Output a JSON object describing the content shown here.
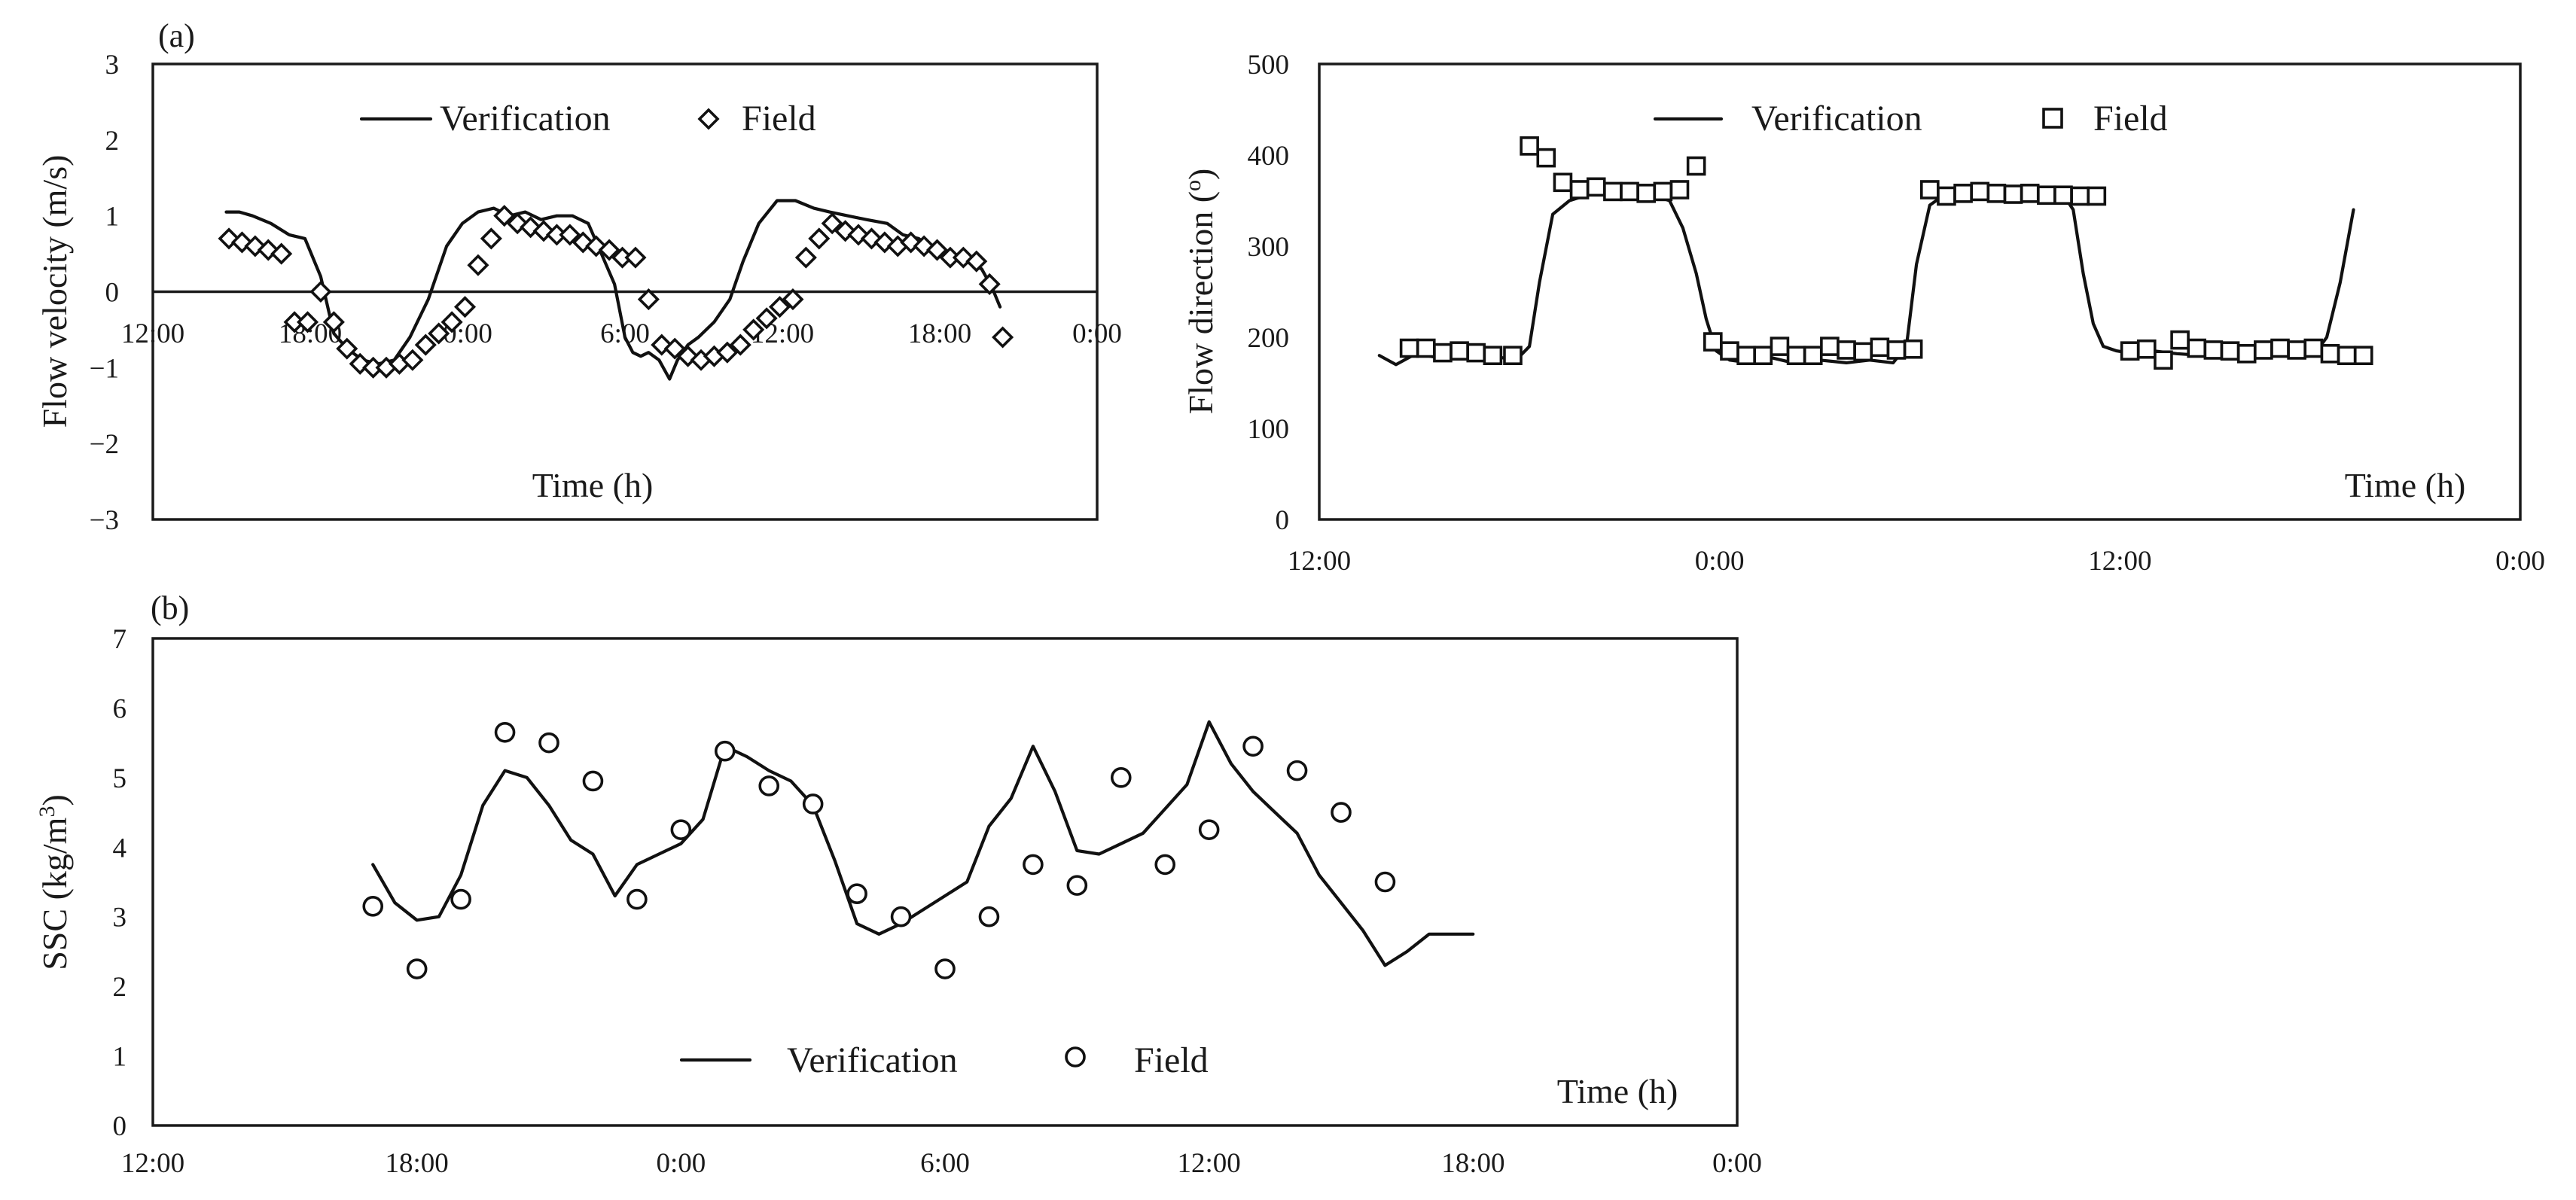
{
  "chart_data": [
    {
      "id": "velocity",
      "type": "line",
      "panel_label": "(a)",
      "ylabel": "Flow velocity (m/s)",
      "xlabel": "Time (h)",
      "ylim": [
        -3,
        3
      ],
      "yticks": [
        3,
        2,
        1,
        0,
        -1,
        -2,
        -3
      ],
      "xlim": [
        0,
        36
      ],
      "xtick_values": [
        0,
        6,
        12,
        18,
        24,
        30,
        36
      ],
      "xtick_labels": [
        "12:00",
        "18:00",
        "0:00",
        "6:00",
        "12:00",
        "18:00",
        "0:00"
      ],
      "legend": [
        "Verification",
        "Field"
      ],
      "series": [
        {
          "name": "Verification",
          "kind": "line",
          "x": [
            2.8,
            3.3,
            3.8,
            4.5,
            5.2,
            5.8,
            6.4,
            6.9,
            7.4,
            8.0,
            8.6,
            9.2,
            9.8,
            10.5,
            11.2,
            11.8,
            12.4,
            13.0,
            13.6,
            14.2,
            14.8,
            15.4,
            16.0,
            16.6,
            17.1,
            17.6,
            18.0,
            18.3,
            18.6,
            18.9,
            19.3,
            19.7,
            20.0,
            20.4,
            20.8,
            21.4,
            22.0,
            22.5,
            23.1,
            23.8,
            24.5,
            25.2,
            25.8,
            26.5,
            27.2,
            28.0,
            28.6,
            29.2,
            29.8,
            30.4,
            31.0,
            31.6,
            32.0,
            32.3
          ],
          "y": [
            1.05,
            1.05,
            1.0,
            0.9,
            0.75,
            0.7,
            0.2,
            -0.55,
            -0.75,
            -0.9,
            -0.95,
            -0.9,
            -0.6,
            -0.1,
            0.6,
            0.9,
            1.05,
            1.1,
            1.0,
            1.05,
            0.95,
            1.0,
            1.0,
            0.9,
            0.5,
            0.1,
            -0.6,
            -0.8,
            -0.85,
            -0.8,
            -0.9,
            -1.15,
            -0.9,
            -0.7,
            -0.6,
            -0.4,
            -0.1,
            0.4,
            0.9,
            1.2,
            1.2,
            1.1,
            1.05,
            1.0,
            0.95,
            0.9,
            0.75,
            0.7,
            0.55,
            0.45,
            0.4,
            0.3,
            0.05,
            -0.2
          ]
        },
        {
          "name": "Field",
          "kind": "diamond",
          "x": [
            2.9,
            3.4,
            3.9,
            4.4,
            4.9,
            5.4,
            5.9,
            6.4,
            6.9,
            7.4,
            7.9,
            8.4,
            8.9,
            9.4,
            9.9,
            10.4,
            10.9,
            11.4,
            11.9,
            12.4,
            12.9,
            13.4,
            13.9,
            14.4,
            14.9,
            15.4,
            15.9,
            16.4,
            16.9,
            17.4,
            17.9,
            18.4,
            18.9,
            19.4,
            19.9,
            20.4,
            20.9,
            21.4,
            21.9,
            22.4,
            22.9,
            23.4,
            23.9,
            24.4,
            24.9,
            25.4,
            25.9,
            26.4,
            26.9,
            27.4,
            27.9,
            28.4,
            28.9,
            29.4,
            29.9,
            30.4,
            30.9,
            31.4,
            31.9,
            32.4
          ],
          "y": [
            0.7,
            0.65,
            0.6,
            0.55,
            0.5,
            -0.4,
            -0.4,
            0.0,
            -0.4,
            -0.75,
            -0.95,
            -1.0,
            -1.0,
            -0.95,
            -0.9,
            -0.7,
            -0.55,
            -0.4,
            -0.2,
            0.35,
            0.7,
            1.0,
            0.9,
            0.85,
            0.8,
            0.75,
            0.75,
            0.65,
            0.6,
            0.55,
            0.45,
            0.45,
            -0.1,
            -0.7,
            -0.75,
            -0.85,
            -0.9,
            -0.85,
            -0.8,
            -0.7,
            -0.5,
            -0.35,
            -0.2,
            -0.1,
            0.45,
            0.7,
            0.9,
            0.8,
            0.75,
            0.7,
            0.65,
            0.6,
            0.65,
            0.6,
            0.55,
            0.45,
            0.45,
            0.4,
            0.1,
            -0.6
          ]
        }
      ]
    },
    {
      "id": "direction",
      "type": "line",
      "panel_label": "",
      "ylabel": "Flow direction (o)",
      "xlabel": "Time (h)",
      "ylim": [
        0,
        500
      ],
      "yticks": [
        500,
        400,
        300,
        200,
        100,
        0
      ],
      "xlim": [
        0,
        36
      ],
      "xtick_values": [
        0,
        12,
        24,
        36
      ],
      "xtick_labels": [
        "12:00",
        "0:00",
        "12:00",
        "0:00"
      ],
      "legend": [
        "Verification",
        "Field"
      ],
      "series": [
        {
          "name": "Verification",
          "kind": "line",
          "x": [
            1.8,
            2.3,
            2.9,
            3.5,
            4.2,
            4.9,
            5.4,
            5.9,
            6.3,
            6.6,
            7.0,
            7.5,
            8.2,
            9.0,
            9.8,
            10.5,
            10.9,
            11.3,
            11.6,
            11.9,
            12.3,
            12.9,
            13.5,
            14.2,
            15.0,
            15.8,
            16.5,
            17.2,
            17.6,
            17.9,
            18.3,
            18.8,
            19.4,
            20.1,
            20.9,
            21.6,
            22.2,
            22.6,
            22.9,
            23.2,
            23.5,
            23.9,
            24.4,
            25.0,
            25.7,
            26.5,
            27.3,
            28.1,
            28.8,
            29.4,
            29.8,
            30.2,
            30.6,
            31.0
          ],
          "y": [
            180,
            170,
            182,
            178,
            180,
            175,
            178,
            175,
            190,
            260,
            335,
            350,
            358,
            360,
            358,
            350,
            320,
            270,
            220,
            185,
            175,
            172,
            178,
            172,
            175,
            172,
            175,
            172,
            190,
            280,
            345,
            358,
            360,
            358,
            356,
            356,
            362,
            340,
            270,
            215,
            190,
            185,
            182,
            185,
            182,
            180,
            185,
            182,
            180,
            178,
            180,
            200,
            260,
            340
          ]
        },
        {
          "name": "Field",
          "kind": "square",
          "x": [
            2.7,
            3.2,
            3.7,
            4.2,
            4.7,
            5.2,
            5.8,
            6.3,
            6.8,
            7.3,
            7.8,
            8.3,
            8.8,
            9.3,
            9.8,
            10.3,
            10.8,
            11.3,
            11.8,
            12.3,
            12.8,
            13.3,
            13.8,
            14.3,
            14.8,
            15.3,
            15.8,
            16.3,
            16.8,
            17.3,
            17.8,
            18.3,
            18.8,
            19.3,
            19.8,
            20.3,
            20.8,
            21.3,
            21.8,
            22.3,
            22.8,
            23.3,
            24.3,
            24.8,
            25.3,
            25.8,
            26.3,
            26.8,
            27.3,
            27.8,
            28.3,
            28.8,
            29.3,
            29.8,
            30.3,
            30.8,
            31.3
          ],
          "y": [
            188,
            188,
            183,
            185,
            183,
            180,
            180,
            410,
            397,
            370,
            362,
            365,
            360,
            360,
            358,
            360,
            362,
            388,
            195,
            185,
            180,
            180,
            190,
            180,
            180,
            190,
            186,
            184,
            189,
            186,
            187,
            362,
            355,
            358,
            360,
            358,
            357,
            358,
            356,
            356,
            355,
            355,
            185,
            187,
            175,
            197,
            188,
            186,
            185,
            182,
            186,
            188,
            186,
            188,
            182,
            180,
            180
          ]
        }
      ]
    },
    {
      "id": "ssc",
      "type": "line",
      "panel_label": "(b)",
      "ylabel": "SSC (kg/m3)",
      "xlabel": "Time (h)",
      "ylim": [
        0,
        7
      ],
      "yticks": [
        7,
        6,
        5,
        4,
        3,
        2,
        1,
        0
      ],
      "xlim": [
        0,
        36
      ],
      "xtick_values": [
        0,
        6,
        12,
        18,
        24,
        30,
        36
      ],
      "xtick_labels": [
        "12:00",
        "18:00",
        "0:00",
        "6:00",
        "12:00",
        "18:00",
        "0:00"
      ],
      "legend": [
        "Verification",
        "Field"
      ],
      "series": [
        {
          "name": "Verification",
          "kind": "line",
          "x": [
            5.0,
            5.5,
            6.0,
            6.5,
            7.0,
            7.5,
            8.0,
            8.5,
            9.0,
            9.5,
            10.0,
            10.5,
            11.0,
            11.5,
            12.0,
            12.5,
            13.0,
            13.5,
            14.0,
            14.5,
            15.0,
            15.5,
            16.0,
            16.5,
            17.0,
            17.5,
            18.0,
            18.5,
            19.0,
            19.5,
            20.0,
            20.5,
            21.0,
            21.5,
            22.0,
            22.5,
            23.0,
            23.5,
            24.0,
            24.5,
            25.0,
            25.5,
            26.0,
            26.5,
            27.0,
            27.5,
            28.0,
            28.5,
            29.0,
            29.3,
            29.6,
            30.0
          ],
          "y": [
            3.75,
            3.2,
            2.95,
            3.0,
            3.6,
            4.6,
            5.1,
            5.0,
            4.6,
            4.1,
            3.9,
            3.3,
            3.75,
            3.9,
            4.05,
            4.4,
            5.45,
            5.3,
            5.1,
            4.95,
            4.6,
            3.8,
            2.9,
            2.75,
            2.9,
            3.1,
            3.3,
            3.5,
            4.3,
            4.7,
            5.45,
            4.8,
            3.95,
            3.9,
            4.05,
            4.2,
            4.55,
            4.9,
            5.8,
            5.2,
            4.8,
            4.5,
            4.2,
            3.6,
            3.2,
            2.8,
            2.3,
            2.5,
            2.75,
            2.75,
            2.75,
            2.75
          ]
        },
        {
          "name": "Field",
          "kind": "circle",
          "x": [
            5.0,
            6.0,
            7.0,
            8.0,
            9.0,
            10.0,
            11.0,
            12.0,
            13.0,
            14.0,
            15.0,
            16.0,
            17.0,
            18.0,
            19.0,
            20.0,
            21.0,
            22.0,
            23.0,
            24.0,
            25.0,
            26.0,
            27.0,
            28.0
          ],
          "y": [
            3.15,
            2.25,
            3.25,
            5.65,
            5.5,
            4.95,
            3.25,
            4.25,
            5.38,
            4.88,
            4.62,
            3.33,
            3.0,
            2.25,
            3.0,
            3.75,
            3.45,
            5.0,
            3.75,
            4.25,
            5.45,
            5.1,
            4.5,
            3.5
          ]
        }
      ]
    }
  ]
}
